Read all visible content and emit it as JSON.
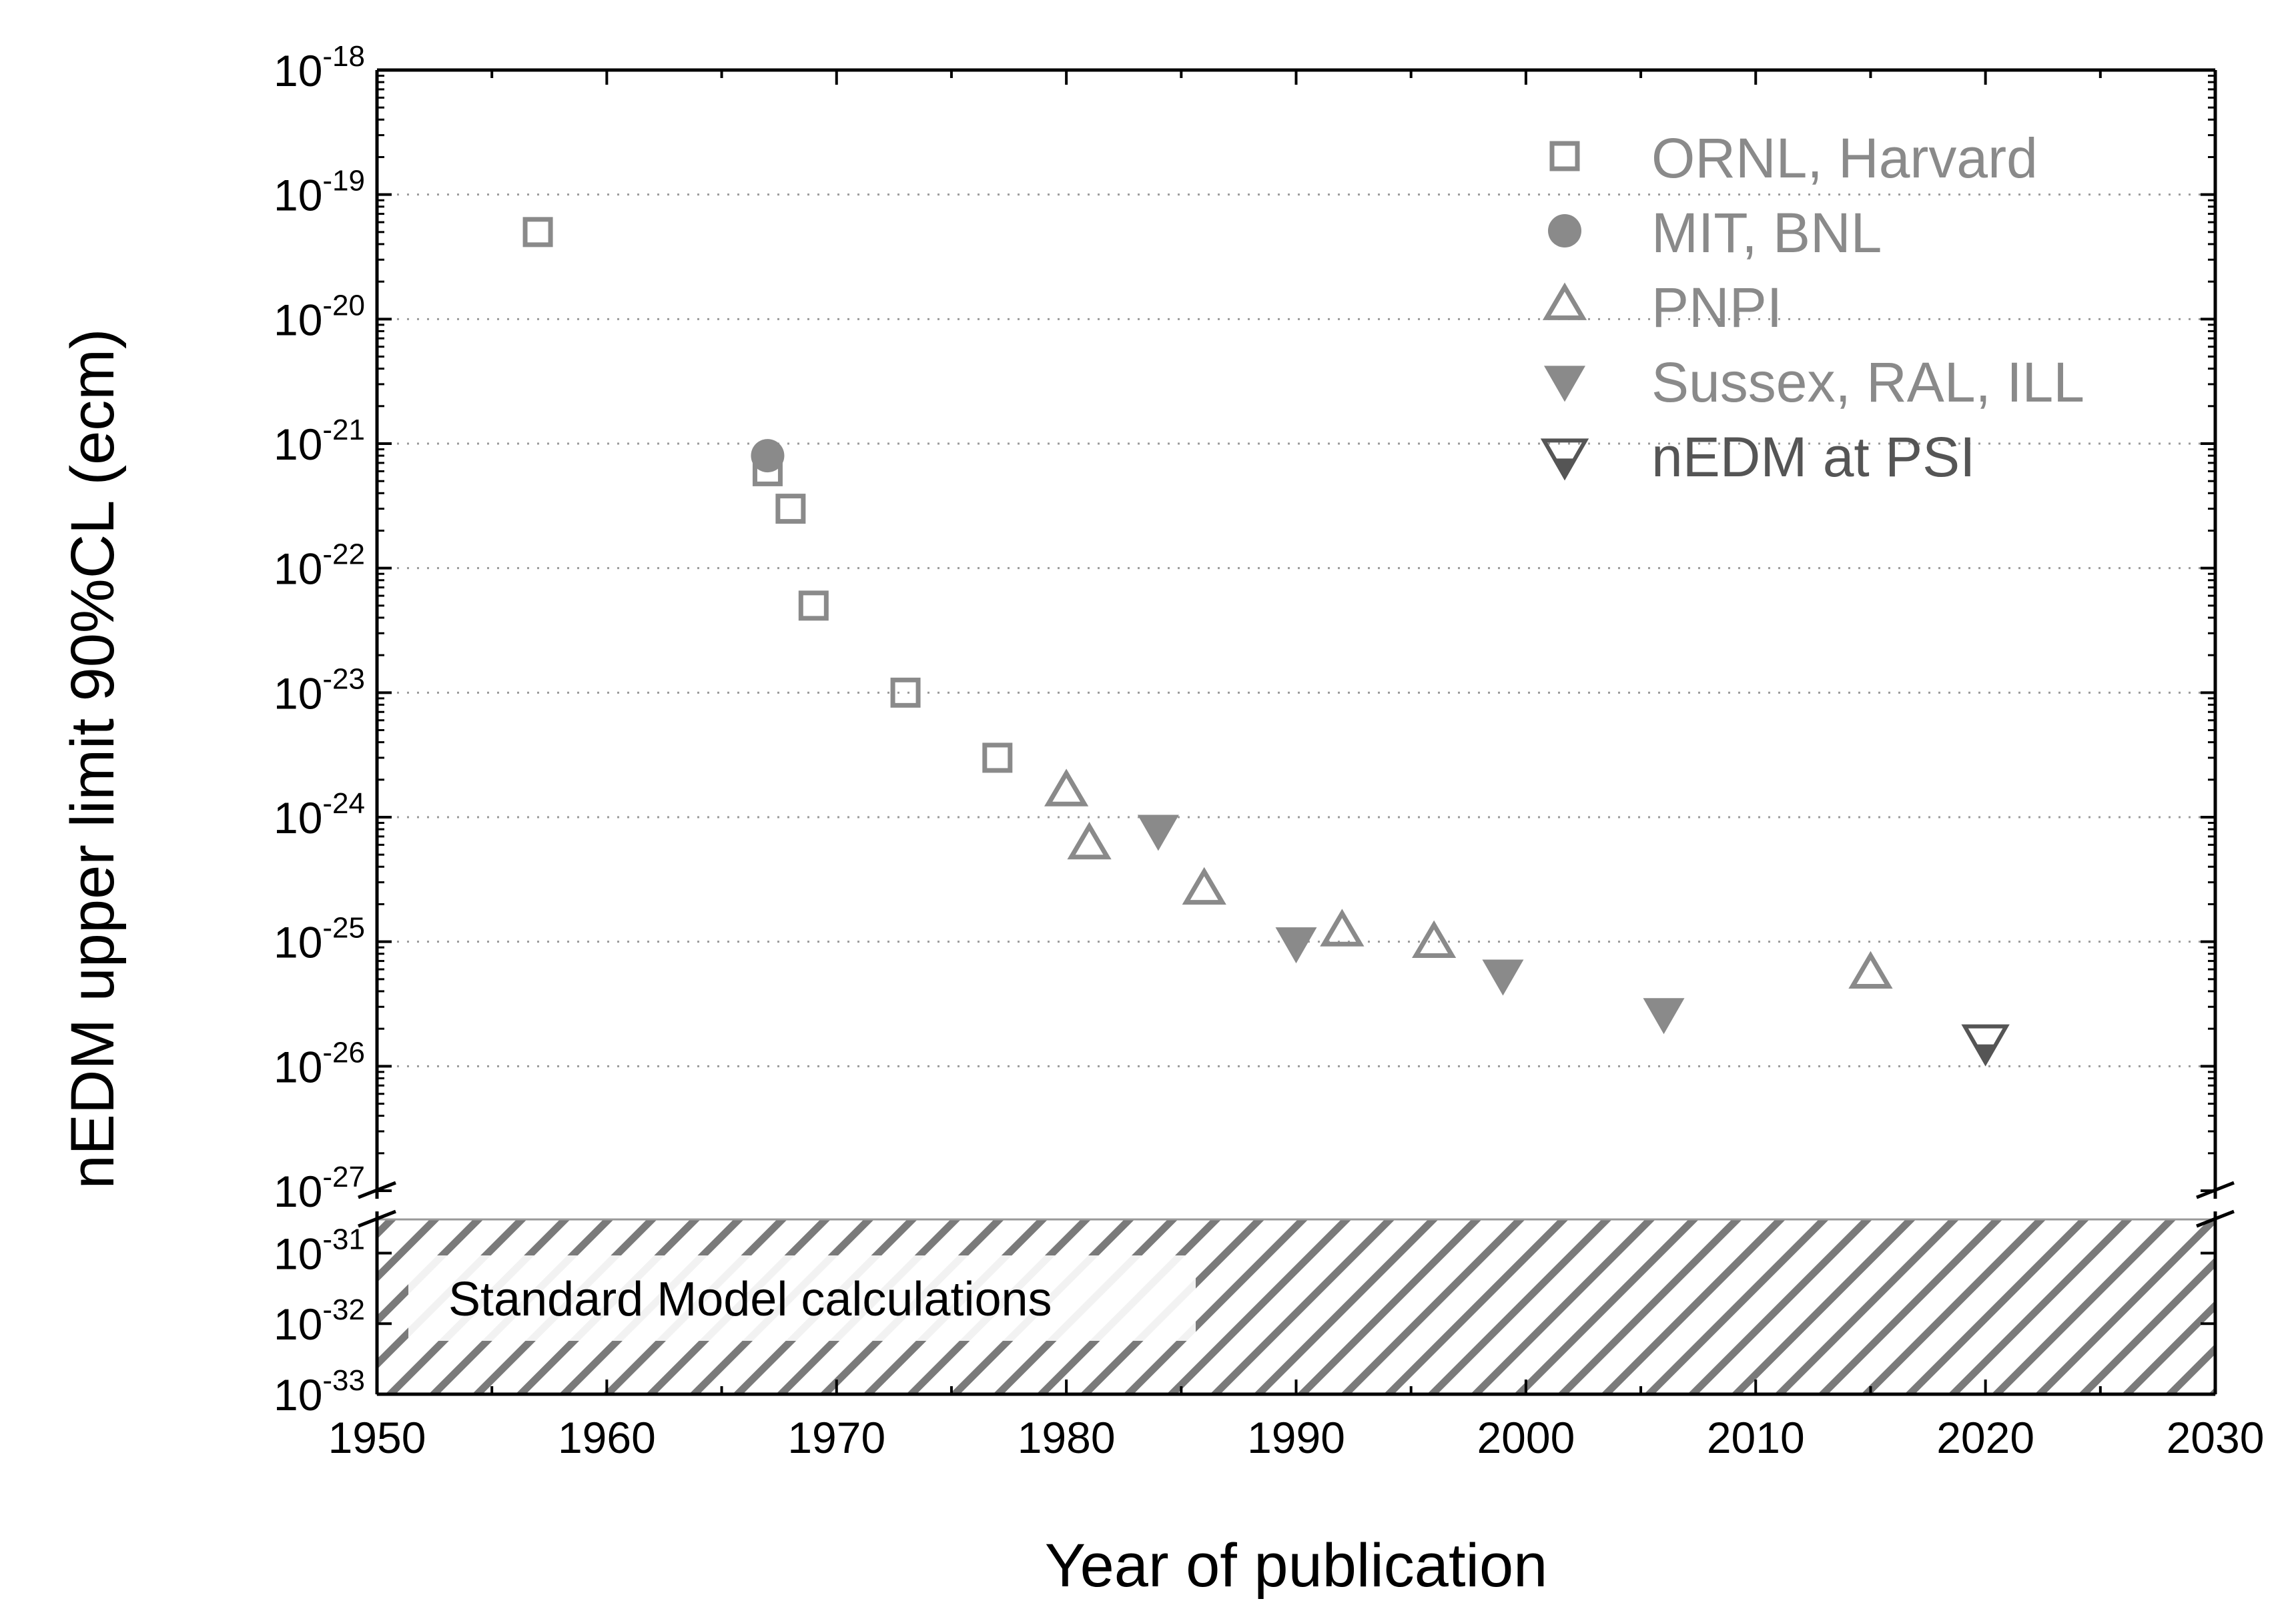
{
  "chart_data": {
    "type": "scatter",
    "xlabel": "Year of publication",
    "ylabel": "nEDM upper limit 90%CL (ecm)",
    "xlim": [
      1950,
      2030
    ],
    "x_ticks": [
      "1950",
      "1960",
      "1970",
      "1980",
      "1990",
      "2000",
      "2010",
      "2020",
      "2030"
    ],
    "y_scale": "log",
    "y_axis_break": true,
    "upper_ylim": [
      1e-27,
      1e-18
    ],
    "lower_ylim": [
      1e-33,
      3e-31
    ],
    "upper_y_ticks": [
      {
        "base": "10",
        "exp": "-18",
        "value": 1e-18
      },
      {
        "base": "10",
        "exp": "-19",
        "value": 1e-19
      },
      {
        "base": "10",
        "exp": "-20",
        "value": 1e-20
      },
      {
        "base": "10",
        "exp": "-21",
        "value": 1e-21
      },
      {
        "base": "10",
        "exp": "-22",
        "value": 1e-22
      },
      {
        "base": "10",
        "exp": "-23",
        "value": 1e-23
      },
      {
        "base": "10",
        "exp": "-24",
        "value": 1e-24
      },
      {
        "base": "10",
        "exp": "-25",
        "value": 1e-25
      },
      {
        "base": "10",
        "exp": "-26",
        "value": 1e-26
      },
      {
        "base": "10",
        "exp": "-27",
        "value": 1e-27
      }
    ],
    "lower_y_ticks": [
      {
        "base": "10",
        "exp": "-31",
        "value": 1e-31
      },
      {
        "base": "10",
        "exp": "-32",
        "value": 1e-32
      },
      {
        "base": "10",
        "exp": "-33",
        "value": 1e-33
      }
    ],
    "grid": "horizontal dotted",
    "legend_position": "top-right",
    "series": [
      {
        "name": "ORNL, Harvard",
        "marker": "open-square",
        "color": "#8a8a8a",
        "points": [
          [
            1957,
            5e-20
          ],
          [
            1967,
            6e-22
          ],
          [
            1968,
            3e-22
          ],
          [
            1969,
            5e-23
          ],
          [
            1973,
            1e-23
          ],
          [
            1977,
            3e-24
          ]
        ]
      },
      {
        "name": "MIT, BNL",
        "marker": "filled-circle",
        "color": "#8a8a8a",
        "points": [
          [
            1967,
            8e-22
          ]
        ]
      },
      {
        "name": "PNPI",
        "marker": "open-triangle-up",
        "color": "#8a8a8a",
        "points": [
          [
            1980,
            1.6e-24
          ],
          [
            1981,
            6e-25
          ],
          [
            1986,
            2.6e-25
          ],
          [
            1992,
            1.2e-25
          ],
          [
            1996,
            9.7e-26
          ],
          [
            2015,
            5.5e-26
          ]
        ]
      },
      {
        "name": "Sussex, RAL, ILL",
        "marker": "filled-triangle-down",
        "color": "#8a8a8a",
        "points": [
          [
            1984,
            8e-25
          ],
          [
            1990,
            1e-25
          ],
          [
            1999,
            5.5e-26
          ],
          [
            2006,
            2.7e-26
          ]
        ]
      },
      {
        "name": "nEDM at PSI",
        "marker": "half-filled-triangle-down",
        "color": "#555555",
        "points": [
          [
            2020,
            1.6e-26
          ]
        ]
      }
    ],
    "shaded_region": {
      "label": "Standard Model calculations",
      "ymin": 1e-33,
      "ymax": 3e-31,
      "pattern": "diagonal hatch"
    }
  }
}
